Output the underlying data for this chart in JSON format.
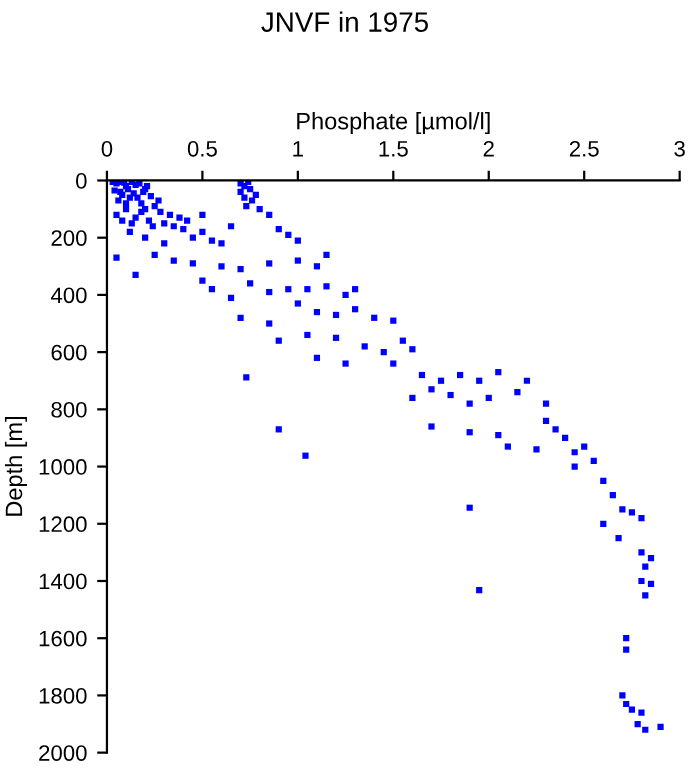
{
  "chart_data": {
    "type": "scatter",
    "title": "JNVF in 1975",
    "xlabel": "Phosphate [µmol/l]",
    "ylabel": "Depth [m]",
    "marker": "square",
    "grid": false,
    "legend": false,
    "xlim": [
      0,
      3
    ],
    "ylim": [
      2000,
      0
    ],
    "xticks": [
      0,
      0.5,
      1,
      1.5,
      2,
      2.5,
      3
    ],
    "yticks": [
      0,
      200,
      400,
      600,
      800,
      1000,
      1200,
      1400,
      1600,
      1800,
      2000
    ],
    "series": [
      {
        "color": "#0000ff",
        "x": [
          0.05,
          0.1,
          0.15,
          0.2,
          0.08,
          0.12,
          0.18,
          0.25,
          0.1,
          0.05,
          0.15,
          0.22,
          0.3,
          0.35,
          0.12,
          0.2,
          0.4,
          0.45,
          0.5,
          0.55,
          0.6,
          0.7,
          0.72,
          0.75,
          0.78,
          0.72,
          0.8,
          0.85,
          0.9,
          0.95,
          1.0,
          0.65,
          0.3,
          0.25,
          0.35,
          0.05,
          0.45,
          0.6,
          0.7,
          0.85,
          1.0,
          1.1,
          1.15,
          0.5,
          0.55,
          0.65,
          0.75,
          0.85,
          0.95,
          1.05,
          1.15,
          1.25,
          1.3,
          0.7,
          0.85,
          1.0,
          1.1,
          1.2,
          1.3,
          1.4,
          1.5,
          0.9,
          1.05,
          1.2,
          1.35,
          1.45,
          1.55,
          1.6,
          0.73,
          1.1,
          1.25,
          1.5,
          1.65,
          1.75,
          1.85,
          1.95,
          1.6,
          1.7,
          1.8,
          1.9,
          2.0,
          2.15,
          2.05,
          2.2,
          2.3,
          2.3,
          2.35,
          1.7,
          1.9,
          2.05,
          2.1,
          2.25,
          2.4,
          2.45,
          2.5,
          2.55,
          2.45,
          2.6,
          2.65,
          2.7,
          2.75,
          2.8,
          2.6,
          2.68,
          2.8,
          2.85,
          2.82,
          2.8,
          2.85,
          2.82,
          1.95,
          1.9,
          2.72,
          2.72,
          2.7,
          2.72,
          2.75,
          2.8,
          2.78,
          2.82,
          2.9,
          0.9,
          1.04,
          0.15,
          0.03,
          0.06,
          0.09,
          0.13,
          0.17,
          0.21,
          0.04,
          0.07,
          0.11,
          0.14,
          0.19,
          0.23,
          0.27,
          0.06,
          0.1,
          0.16,
          0.2,
          0.28,
          0.33,
          0.08,
          0.13,
          0.18,
          0.24,
          0.74,
          0.7,
          0.76,
          0.73,
          0.38,
          0.42,
          0.5
        ],
        "values": [
          10,
          20,
          15,
          30,
          50,
          60,
          80,
          90,
          100,
          120,
          130,
          140,
          150,
          160,
          180,
          200,
          170,
          200,
          180,
          210,
          220,
          10,
          20,
          30,
          50,
          60,
          100,
          120,
          170,
          190,
          210,
          160,
          220,
          260,
          280,
          270,
          290,
          300,
          310,
          290,
          280,
          300,
          260,
          350,
          380,
          410,
          360,
          390,
          380,
          380,
          370,
          400,
          380,
          480,
          500,
          430,
          460,
          470,
          450,
          480,
          490,
          560,
          540,
          550,
          580,
          600,
          560,
          590,
          688,
          620,
          640,
          640,
          680,
          700,
          680,
          700,
          760,
          730,
          750,
          780,
          760,
          740,
          670,
          700,
          780,
          840,
          870,
          860,
          880,
          890,
          930,
          940,
          900,
          950,
          930,
          980,
          1000,
          1050,
          1100,
          1150,
          1160,
          1180,
          1200,
          1250,
          1300,
          1320,
          1350,
          1400,
          1410,
          1450,
          1432,
          1144,
          1600,
          1640,
          1800,
          1830,
          1850,
          1860,
          1900,
          1920,
          1910,
          870,
          962,
          330,
          5,
          5,
          8,
          5,
          10,
          20,
          35,
          40,
          30,
          45,
          40,
          55,
          70,
          70,
          80,
          60,
          100,
          110,
          120,
          140,
          150,
          110,
          160,
          5,
          40,
          70,
          90,
          130,
          140,
          120
        ]
      }
    ]
  }
}
